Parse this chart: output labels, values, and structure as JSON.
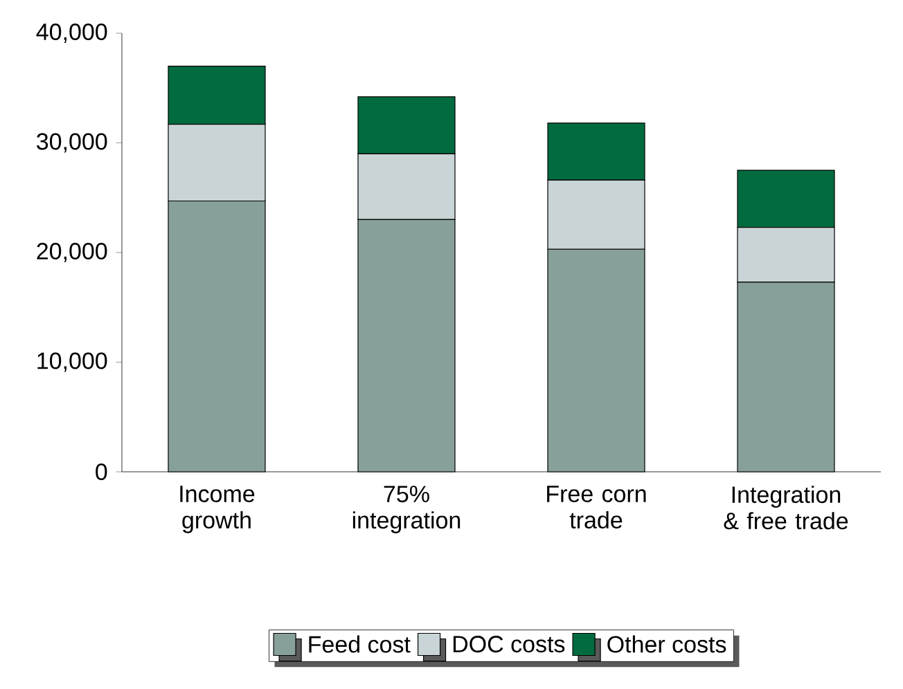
{
  "chart_data": {
    "type": "bar",
    "stacked": true,
    "categories": [
      "Income growth",
      "75% integration",
      "Free corn trade",
      "Integration & free trade"
    ],
    "series": [
      {
        "name": "Feed cost",
        "color": "#87a09a",
        "values": [
          24700,
          23000,
          20300,
          17300
        ]
      },
      {
        "name": "DOC costs",
        "color": "#c8d4d6",
        "values": [
          7000,
          6000,
          6300,
          5000
        ]
      },
      {
        "name": "Other costs",
        "color": "#006b3f",
        "values": [
          5300,
          5200,
          5200,
          5200
        ]
      }
    ],
    "ylim": [
      0,
      40000
    ],
    "yticks": [
      0,
      {
        "value": 10000,
        "label": "10,000"
      },
      {
        "value": 20000,
        "label": "20,000"
      },
      {
        "value": 30000,
        "label": "30,000"
      },
      {
        "value": 40000,
        "label": "40,000"
      }
    ],
    "legend": "bottom"
  }
}
